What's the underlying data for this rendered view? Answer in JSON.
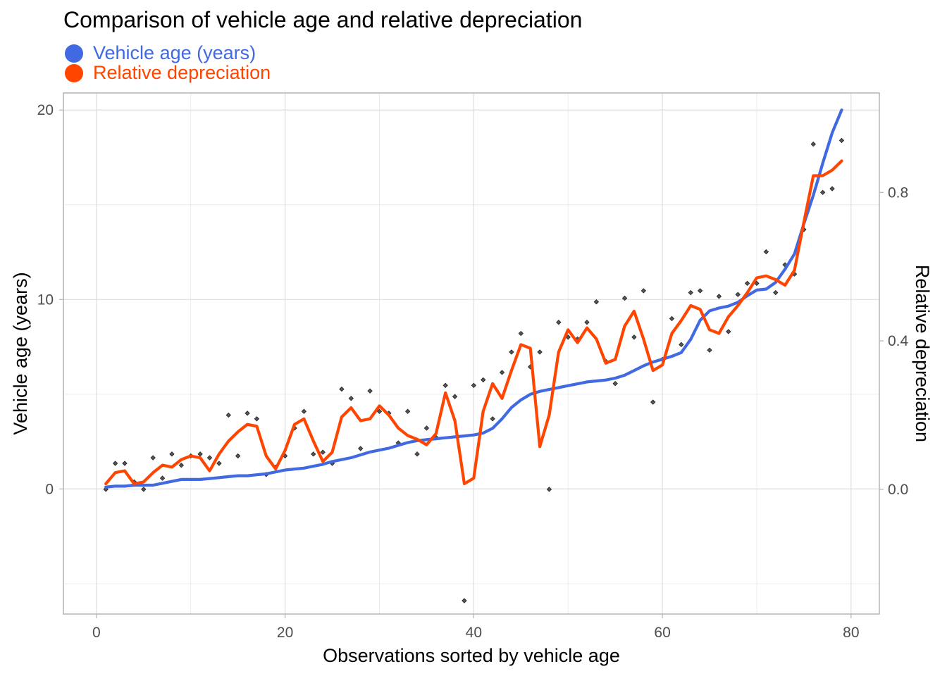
{
  "chart_data": {
    "type": "line",
    "title": "Comparison of vehicle age and relative depreciation",
    "xlabel": "Observations sorted by vehicle age",
    "ylabel": "Vehicle age (years)",
    "y2label": "Relative depreciation",
    "xlim": [
      -3.5,
      83
    ],
    "ylim": [
      -6.6,
      20.9
    ],
    "y2lim": [
      -0.336,
      1.068
    ],
    "x_ticks": [
      0,
      20,
      40,
      60,
      80
    ],
    "x_tick_labels": [
      "0",
      "20",
      "40",
      "60",
      "80"
    ],
    "y_ticks": [
      0,
      10,
      20
    ],
    "y_tick_labels": [
      "0",
      "10",
      "20"
    ],
    "y2_ticks": [
      0.0,
      0.4,
      0.8
    ],
    "y2_tick_labels": [
      "0.0",
      "0.4",
      "0.8"
    ],
    "grid": true,
    "legend_position": "top-left",
    "series": [
      {
        "name": "Vehicle age (years)",
        "color": "#4169E1",
        "axis": "left",
        "style": "line",
        "x": [
          1,
          2,
          3,
          4,
          5,
          6,
          7,
          8,
          9,
          10,
          11,
          12,
          13,
          14,
          15,
          16,
          17,
          18,
          19,
          20,
          21,
          22,
          23,
          24,
          25,
          26,
          27,
          28,
          29,
          30,
          31,
          32,
          33,
          34,
          35,
          36,
          37,
          38,
          39,
          40,
          41,
          42,
          43,
          44,
          45,
          46,
          47,
          48,
          49,
          50,
          51,
          52,
          53,
          54,
          55,
          56,
          57,
          58,
          59,
          60,
          61,
          62,
          63,
          64,
          65,
          66,
          67,
          68,
          69,
          70,
          71,
          72,
          73,
          74,
          75,
          76,
          77,
          78,
          79
        ],
        "values": [
          0.1,
          0.15,
          0.15,
          0.2,
          0.2,
          0.2,
          0.3,
          0.4,
          0.5,
          0.5,
          0.5,
          0.55,
          0.6,
          0.65,
          0.7,
          0.7,
          0.75,
          0.8,
          0.9,
          1.0,
          1.05,
          1.1,
          1.2,
          1.3,
          1.45,
          1.55,
          1.65,
          1.8,
          1.95,
          2.05,
          2.15,
          2.3,
          2.45,
          2.55,
          2.6,
          2.65,
          2.7,
          2.75,
          2.8,
          2.85,
          2.95,
          3.2,
          3.7,
          4.3,
          4.7,
          5.0,
          5.15,
          5.25,
          5.35,
          5.45,
          5.55,
          5.65,
          5.7,
          5.75,
          5.85,
          6.0,
          6.25,
          6.5,
          6.7,
          6.85,
          7.0,
          7.2,
          7.9,
          8.9,
          9.4,
          9.55,
          9.65,
          9.85,
          10.2,
          10.5,
          10.55,
          10.9,
          11.6,
          12.4,
          14.0,
          15.5,
          17.2,
          18.8,
          20.0
        ]
      },
      {
        "name": "Relative depreciation",
        "color": "#FF4500",
        "axis": "right",
        "style": "line",
        "x": [
          1,
          2,
          3,
          4,
          5,
          6,
          7,
          8,
          9,
          10,
          11,
          12,
          13,
          14,
          15,
          16,
          17,
          18,
          19,
          20,
          21,
          22,
          23,
          24,
          25,
          26,
          27,
          28,
          29,
          30,
          31,
          32,
          33,
          34,
          35,
          36,
          37,
          38,
          39,
          40,
          41,
          42,
          43,
          44,
          45,
          46,
          47,
          48,
          49,
          50,
          51,
          52,
          53,
          54,
          55,
          56,
          57,
          58,
          59,
          60,
          61,
          62,
          63,
          64,
          65,
          66,
          67,
          68,
          69,
          70,
          71,
          72,
          73,
          74,
          75,
          76,
          77,
          78,
          79
        ],
        "values": [
          0.015,
          0.045,
          0.05,
          0.015,
          0.02,
          0.045,
          0.065,
          0.06,
          0.08,
          0.09,
          0.085,
          0.05,
          0.095,
          0.13,
          0.155,
          0.175,
          0.17,
          0.09,
          0.055,
          0.105,
          0.175,
          0.19,
          0.13,
          0.075,
          0.1,
          0.195,
          0.22,
          0.185,
          0.19,
          0.225,
          0.2,
          0.165,
          0.145,
          0.135,
          0.12,
          0.15,
          0.26,
          0.185,
          0.015,
          0.03,
          0.21,
          0.285,
          0.245,
          0.32,
          0.39,
          0.38,
          0.115,
          0.2,
          0.37,
          0.43,
          0.395,
          0.435,
          0.405,
          0.34,
          0.35,
          0.44,
          0.48,
          0.405,
          0.32,
          0.335,
          0.42,
          0.455,
          0.495,
          0.485,
          0.43,
          0.42,
          0.465,
          0.495,
          0.53,
          0.57,
          0.575,
          0.565,
          0.55,
          0.59,
          0.72,
          0.845,
          0.845,
          0.86,
          0.885
        ]
      },
      {
        "name": "",
        "color": "#333333",
        "axis": "right",
        "style": "points",
        "x": [
          1,
          2,
          3,
          4,
          5,
          6,
          7,
          8,
          9,
          10,
          11,
          12,
          13,
          14,
          15,
          16,
          17,
          18,
          19,
          20,
          21,
          22,
          23,
          24,
          25,
          26,
          27,
          28,
          29,
          30,
          31,
          32,
          33,
          34,
          35,
          36,
          37,
          38,
          39,
          40,
          41,
          42,
          43,
          44,
          45,
          46,
          47,
          48,
          49,
          50,
          51,
          52,
          53,
          54,
          55,
          56,
          57,
          58,
          59,
          60,
          61,
          62,
          63,
          64,
          65,
          66,
          67,
          68,
          69,
          70,
          71,
          72,
          73,
          74,
          75,
          76,
          77,
          78,
          79
        ],
        "values": [
          0.0,
          0.07,
          0.07,
          0.02,
          0.0,
          0.085,
          0.03,
          0.095,
          0.065,
          0.09,
          0.095,
          0.085,
          0.07,
          0.2,
          0.09,
          0.205,
          0.19,
          0.04,
          0.06,
          0.09,
          0.165,
          0.21,
          0.095,
          0.1,
          0.07,
          0.27,
          0.245,
          0.11,
          0.265,
          0.21,
          0.205,
          0.125,
          0.21,
          0.095,
          0.165,
          0.14,
          0.28,
          0.25,
          -0.3,
          0.28,
          0.295,
          0.19,
          0.315,
          0.37,
          0.42,
          0.33,
          0.37,
          0.0,
          0.45,
          0.41,
          0.405,
          0.45,
          0.505,
          0.345,
          0.285,
          0.515,
          0.41,
          0.535,
          0.235,
          0.35,
          0.46,
          0.39,
          0.53,
          0.535,
          0.375,
          0.52,
          0.425,
          0.525,
          0.555,
          0.555,
          0.64,
          0.53,
          0.605,
          0.58,
          0.7,
          0.93,
          0.8,
          0.81,
          0.94
        ]
      }
    ]
  }
}
